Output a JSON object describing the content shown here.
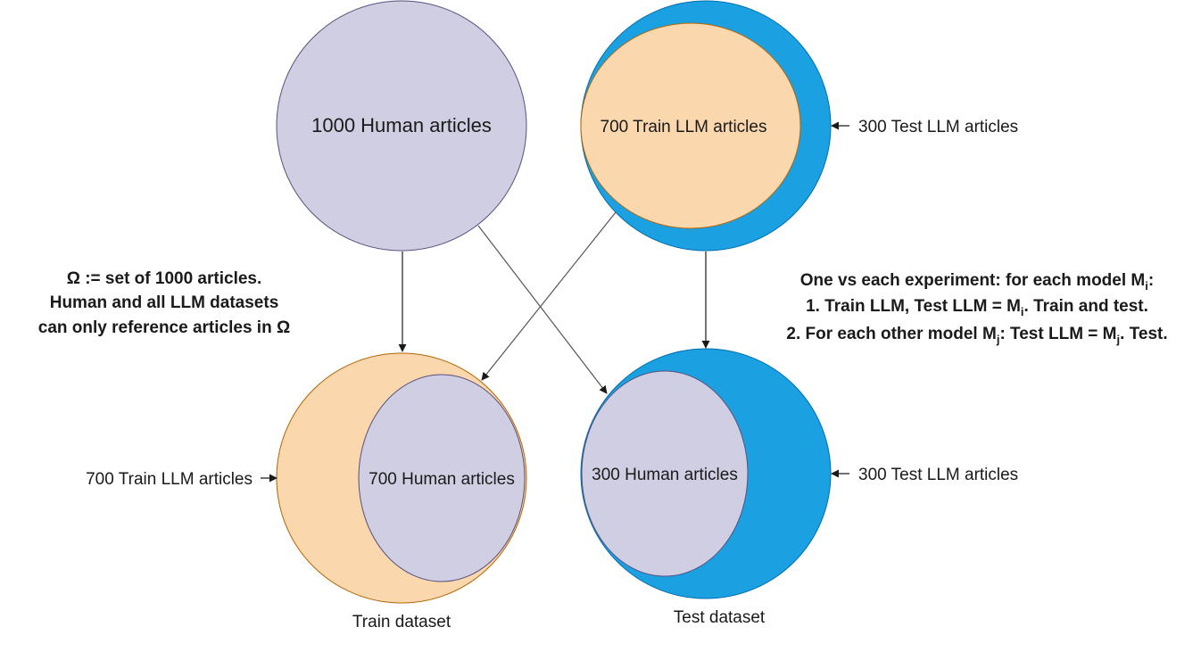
{
  "colors": {
    "human_fill": "#d0cee2",
    "human_stroke": "#56517e",
    "train_fill": "#fad7ac",
    "train_stroke": "#b46504",
    "test_fill": "#1ba1e2",
    "test_stroke": "#006eaf"
  },
  "top": {
    "human_label": "1000 Human articles",
    "train_llm_label": "700 Train LLM articles",
    "test_llm_label": "300 Test LLM articles"
  },
  "bottom": {
    "train_outer_label": "700 Train LLM articles",
    "train_inner_label": "700 Human articles",
    "test_inner_label": "300 Human articles",
    "test_outer_label": "300 Test LLM articles",
    "train_caption": "Train dataset",
    "test_caption": "Test dataset"
  },
  "omega_note": {
    "line1": "Ω := set of 1000 articles.",
    "line2": "Human and all LLM datasets",
    "line3": "can only reference articles in Ω"
  },
  "experiment_note": {
    "l1_a": "One vs each experiment: for each model M",
    "l1_sub": "i",
    "l1_b": ":",
    "l2_a": "1. Train LLM, Test LLM = M",
    "l2_sub": "i",
    "l2_b": ". Train and test.",
    "l3_a": "2. For each other model M",
    "l3_sub1": "j",
    "l3_b": ": Test LLM = M",
    "l3_sub2": "j",
    "l3_c": ". Test."
  }
}
